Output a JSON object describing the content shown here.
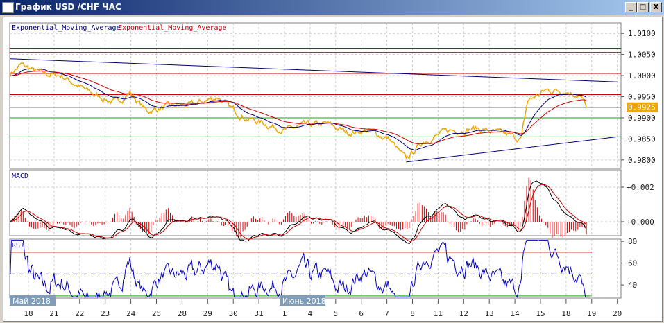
{
  "window": {
    "title": "График USD /CHF  ЧАС",
    "buttons": {
      "minimize": "_",
      "maximize": "□",
      "close": "X"
    }
  },
  "colors": {
    "price": "#f0a500",
    "ema_fast": "#000080",
    "ema_slow": "#cc0000",
    "support": "#00b000",
    "level": "#cc0000",
    "current": "#000000",
    "rsi": "#0000c0",
    "rsi_extreme": "#ff00ff"
  },
  "legend": {
    "ema1": "Exponential_Moving_Average",
    "ema2": "Exponential_Moving_Average"
  },
  "panels": {
    "macd": "MACD",
    "rsi": "RSI"
  },
  "current_price": "0.9925",
  "month_labels": [
    "Май 2018",
    "Июнь 2018"
  ],
  "chart_data": [
    {
      "type": "line",
      "title": "",
      "ylim": [
        0.978,
        1.0125
      ],
      "yticks": [
        "1.0100",
        "1.0050",
        "1.0000",
        "0.9950",
        "0.9900",
        "0.9850",
        "0.9800"
      ],
      "days": [
        "05-17",
        "05-18",
        "05-21",
        "05-22",
        "05-23",
        "05-24",
        "05-25",
        "05-28",
        "05-29",
        "05-30",
        "05-31",
        "06-01",
        "06-04",
        "06-05",
        "06-06",
        "06-07",
        "06-08",
        "06-11",
        "06-12",
        "06-13",
        "06-14",
        "06-15",
        "06-18",
        "06-19",
        "06-20"
      ],
      "xticks": [
        "18",
        "21",
        "22",
        "23",
        "24",
        "25",
        "28",
        "29",
        "30",
        "31",
        "1",
        "4",
        "5",
        "6",
        "7",
        "8",
        "11",
        "12",
        "13",
        "14",
        "15",
        "18",
        "19",
        "20"
      ],
      "price_keypoints": [
        [
          "05-17 07",
          1.0005
        ],
        [
          "05-17 17",
          1.0025
        ],
        [
          "05-18 12",
          1.0005
        ],
        [
          "05-21 07",
          1.0
        ],
        [
          "05-22 09",
          0.996
        ],
        [
          "05-23 10",
          0.9935
        ],
        [
          "05-23 23",
          0.996
        ],
        [
          "05-24 15",
          0.9915
        ],
        [
          "05-25 07",
          0.9925
        ],
        [
          "05-28 09",
          0.993
        ],
        [
          "05-29 10",
          0.995
        ],
        [
          "05-29 20",
          0.9925
        ],
        [
          "05-30 12",
          0.99
        ],
        [
          "05-31 13",
          0.988
        ],
        [
          "06-01 02",
          0.987
        ],
        [
          "06-01 15",
          0.988
        ],
        [
          "06-04 16",
          0.9885
        ],
        [
          "06-05 11",
          0.9865
        ],
        [
          "06-06 06",
          0.987
        ],
        [
          "06-07 02",
          0.985
        ],
        [
          "06-07 18",
          0.98
        ],
        [
          "06-08 10",
          0.9845
        ],
        [
          "06-11 11",
          0.987
        ],
        [
          "06-12 13",
          0.9875
        ],
        [
          "06-13 14",
          0.986
        ],
        [
          "06-14 06",
          0.985
        ],
        [
          "06-14 12",
          0.994
        ],
        [
          "06-15 05",
          0.9965
        ],
        [
          "06-15 23",
          0.9965
        ],
        [
          "06-18 12",
          0.9955
        ],
        [
          "06-18 20",
          0.9925
        ]
      ],
      "horizontal_levels": [
        {
          "value": 1.0065,
          "kind": "level"
        },
        {
          "value": 1.0055,
          "kind": "level"
        },
        {
          "value": 1.0005,
          "kind": "level"
        },
        {
          "value": 0.9955,
          "kind": "level"
        },
        {
          "value": 0.9925,
          "kind": "current"
        },
        {
          "value": 0.99,
          "kind": "support"
        },
        {
          "value": 0.9855,
          "kind": "support"
        }
      ],
      "trendlines": [
        {
          "from": [
            "05-17 07",
            1.004
          ],
          "to": [
            "06-20 00",
            0.9985
          ]
        },
        {
          "from": [
            "06-07 18",
            0.9795
          ],
          "to": [
            "06-20 00",
            0.9855
          ]
        }
      ]
    },
    {
      "type": "bar+line",
      "title": "MACD",
      "ylim": [
        -0.0008,
        0.003
      ],
      "yticks": [
        "+0.002",
        "+0.000"
      ]
    },
    {
      "type": "line",
      "title": "RSI",
      "ylim": [
        28,
        82
      ],
      "yticks": [
        "80",
        "60",
        "40"
      ],
      "levels": [
        70,
        50,
        30
      ]
    }
  ]
}
